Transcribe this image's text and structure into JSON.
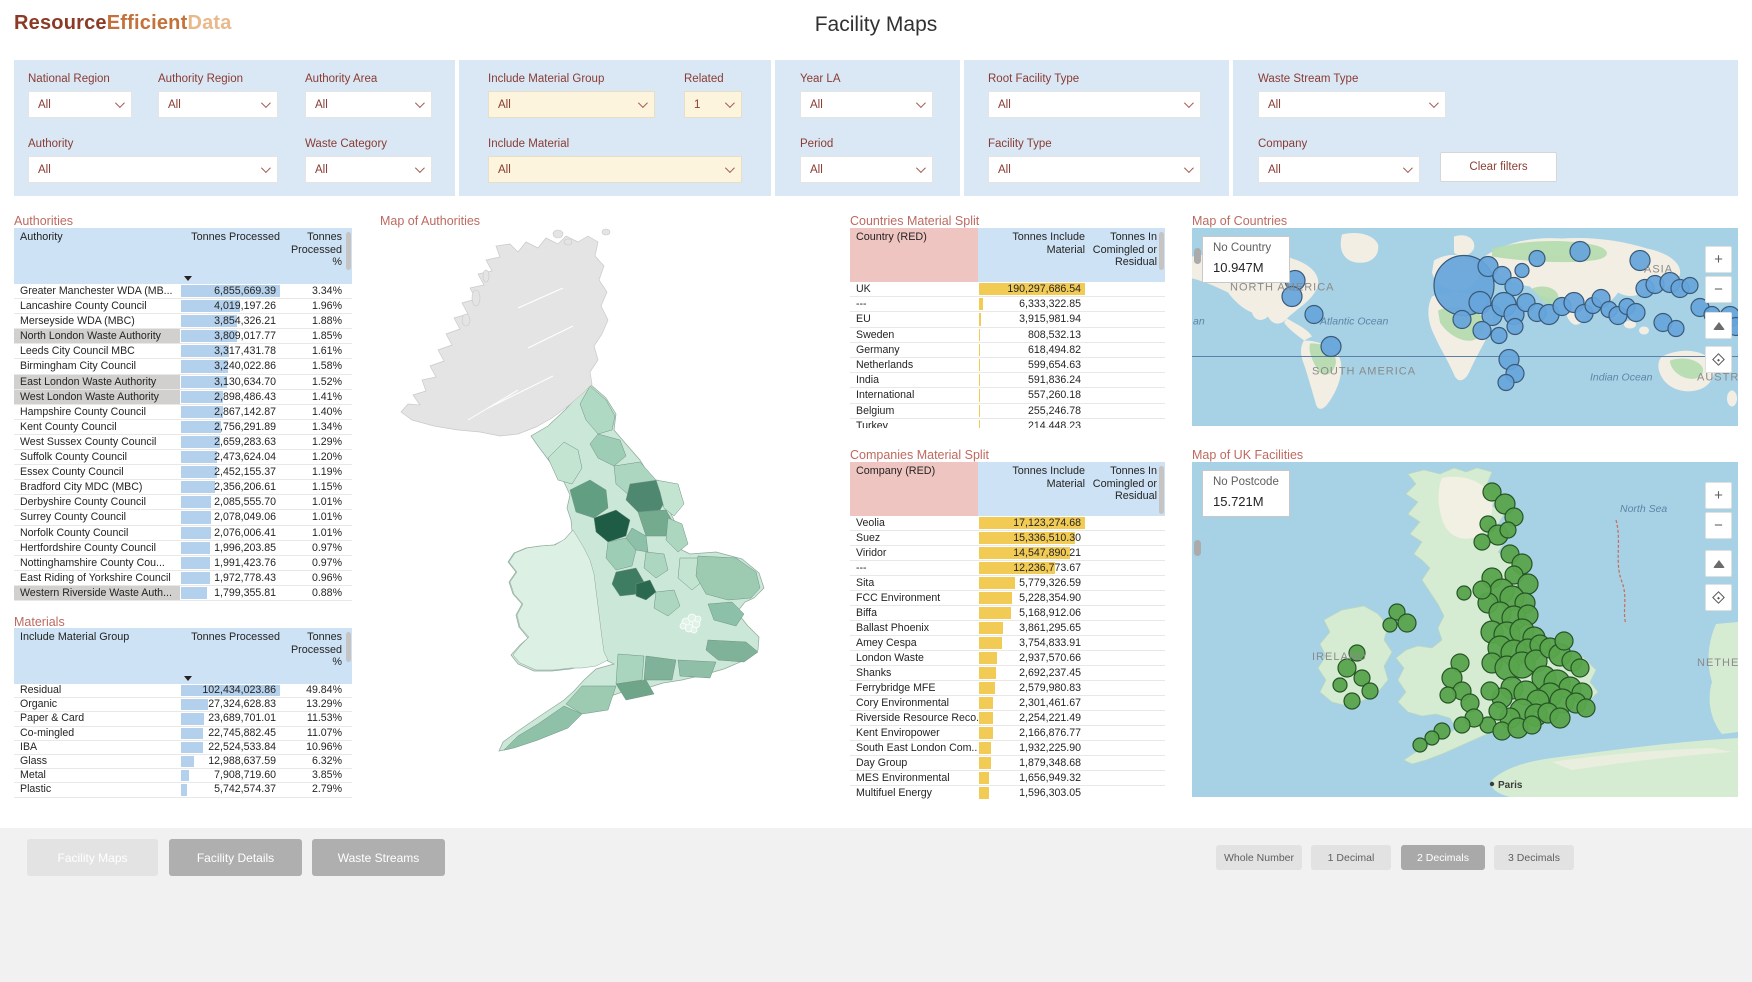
{
  "logo": {
    "part1": "Resource",
    "part2": "Efficient",
    "part3": "Data"
  },
  "page": {
    "title": "Facility Maps"
  },
  "filters": {
    "national_region": {
      "label": "National Region",
      "value": "All"
    },
    "authority_region": {
      "label": "Authority Region",
      "value": "All"
    },
    "authority_area": {
      "label": "Authority Area",
      "value": "All"
    },
    "authority": {
      "label": "Authority",
      "value": "All"
    },
    "waste_category": {
      "label": "Waste Category",
      "value": "All"
    },
    "include_material_group": {
      "label": "Include Material Group",
      "value": "All"
    },
    "related": {
      "label": "Related",
      "value": "1"
    },
    "include_material": {
      "label": "Include Material",
      "value": "All"
    },
    "year_la": {
      "label": "Year LA",
      "value": "All"
    },
    "period": {
      "label": "Period",
      "value": "All"
    },
    "root_facility_type": {
      "label": "Root Facility Type",
      "value": "All"
    },
    "facility_type": {
      "label": "Facility Type",
      "value": "All"
    },
    "waste_stream_type": {
      "label": "Waste Stream Type",
      "value": "All"
    },
    "company": {
      "label": "Company",
      "value": "All"
    },
    "clear_label": "Clear filters"
  },
  "authorities": {
    "title": "Authorities",
    "headers": [
      "Authority",
      "Tonnes Processed",
      "Tonnes Processed %"
    ],
    "rows": [
      {
        "name": "Greater Manchester WDA (MB...",
        "value": "6,855,669.39",
        "pct": "3.34%"
      },
      {
        "name": "Lancashire County Council",
        "value": "4,019,197.26",
        "pct": "1.96%"
      },
      {
        "name": "Merseyside WDA (MBC)",
        "value": "3,854,326.21",
        "pct": "1.88%"
      },
      {
        "name": "North London Waste Authority",
        "value": "3,809,017.77",
        "pct": "1.85%",
        "hl": true
      },
      {
        "name": "Leeds City Council MBC",
        "value": "3,317,431.78",
        "pct": "1.61%"
      },
      {
        "name": "Birmingham City Council",
        "value": "3,240,022.86",
        "pct": "1.58%"
      },
      {
        "name": "East London Waste Authority",
        "value": "3,130,634.70",
        "pct": "1.52%",
        "hl": true
      },
      {
        "name": "West London Waste Authority",
        "value": "2,898,486.43",
        "pct": "1.41%",
        "hl": true
      },
      {
        "name": "Hampshire County Council",
        "value": "2,867,142.87",
        "pct": "1.40%"
      },
      {
        "name": "Kent County Council",
        "value": "2,756,291.89",
        "pct": "1.34%"
      },
      {
        "name": "West Sussex County Council",
        "value": "2,659,283.63",
        "pct": "1.29%"
      },
      {
        "name": "Suffolk County Council",
        "value": "2,473,624.04",
        "pct": "1.20%"
      },
      {
        "name": "Essex County Council",
        "value": "2,452,155.37",
        "pct": "1.19%"
      },
      {
        "name": "Bradford City MDC (MBC)",
        "value": "2,356,206.61",
        "pct": "1.15%"
      },
      {
        "name": "Derbyshire County Council",
        "value": "2,085,555.70",
        "pct": "1.01%"
      },
      {
        "name": "Surrey County Council",
        "value": "2,078,049.06",
        "pct": "1.01%"
      },
      {
        "name": "Norfolk County Council",
        "value": "2,076,006.41",
        "pct": "1.01%"
      },
      {
        "name": "Hertfordshire County Council",
        "value": "1,996,203.85",
        "pct": "0.97%"
      },
      {
        "name": "Nottinghamshire County Cou...",
        "value": "1,991,423.76",
        "pct": "0.97%"
      },
      {
        "name": "East Riding of Yorkshire Council",
        "value": "1,972,778.43",
        "pct": "0.96%"
      },
      {
        "name": "Western Riverside Waste Auth...",
        "value": "1,799,355.81",
        "pct": "0.88%",
        "hl": true
      }
    ]
  },
  "materials": {
    "title": "Materials",
    "headers": [
      "Include Material Group",
      "Tonnes Processed",
      "Tonnes Processed %"
    ],
    "rows": [
      {
        "name": "Residual",
        "value": "102,434,023.86",
        "pct": "49.84%"
      },
      {
        "name": "Organic",
        "value": "27,324,628.83",
        "pct": "13.29%"
      },
      {
        "name": "Paper & Card",
        "value": "23,689,701.01",
        "pct": "11.53%"
      },
      {
        "name": "Co-mingled",
        "value": "22,745,882.45",
        "pct": "11.07%"
      },
      {
        "name": "IBA",
        "value": "22,524,533.84",
        "pct": "10.96%"
      },
      {
        "name": "Glass",
        "value": "12,988,637.59",
        "pct": "6.32%"
      },
      {
        "name": "Metal",
        "value": "7,908,719.60",
        "pct": "3.85%"
      },
      {
        "name": "Plastic",
        "value": "5,742,574.37",
        "pct": "2.79%"
      }
    ]
  },
  "countries": {
    "title": "Countries Material Split",
    "headers": [
      "Country (RED)",
      "Tonnes Include Material",
      "Tonnes In Comingled or Residual"
    ],
    "rows": [
      {
        "name": "UK",
        "value": "190,297,686.54"
      },
      {
        "name": "---",
        "value": "6,333,322.85"
      },
      {
        "name": "EU",
        "value": "3,915,981.94"
      },
      {
        "name": "Sweden",
        "value": "808,532.13"
      },
      {
        "name": "Germany",
        "value": "618,494.82"
      },
      {
        "name": "Netherlands",
        "value": "599,654.63"
      },
      {
        "name": "India",
        "value": "591,836.24"
      },
      {
        "name": "International",
        "value": "557,260.18"
      },
      {
        "name": "Belgium",
        "value": "255,246.78"
      },
      {
        "name": "Turkey",
        "value": "214,448.23"
      }
    ]
  },
  "companies": {
    "title": "Companies Material Split",
    "headers": [
      "Company (RED)",
      "Tonnes Include Material",
      "Tonnes In Comingled or Residual"
    ],
    "rows": [
      {
        "name": "Veolia",
        "value": "17,123,274.68"
      },
      {
        "name": "Suez",
        "value": "15,336,510.30"
      },
      {
        "name": "Viridor",
        "value": "14,547,890.21"
      },
      {
        "name": "---",
        "value": "12,236,773.67"
      },
      {
        "name": "Sita",
        "value": "5,779,326.59"
      },
      {
        "name": "FCC Environment",
        "value": "5,228,354.90"
      },
      {
        "name": "Biffa",
        "value": "5,168,912.06"
      },
      {
        "name": "Ballast Phoenix",
        "value": "3,861,295.65"
      },
      {
        "name": "Amey Cespa",
        "value": "3,754,833.91"
      },
      {
        "name": "London Waste",
        "value": "2,937,570.66"
      },
      {
        "name": "Shanks",
        "value": "2,692,237.45"
      },
      {
        "name": "Ferrybridge MFE",
        "value": "2,579,980.83"
      },
      {
        "name": "Cory Environmental",
        "value": "2,301,461.67"
      },
      {
        "name": "Riverside Resource Reco...",
        "value": "2,254,221.49"
      },
      {
        "name": "Kent Enviropower",
        "value": "2,166,876.77"
      },
      {
        "name": "South East London Com...",
        "value": "1,932,225.90"
      },
      {
        "name": "Day Group",
        "value": "1,879,348.68"
      },
      {
        "name": "MES Environmental",
        "value": "1,656,949.32"
      },
      {
        "name": "Multifuel Energy",
        "value": "1,596,303.05"
      }
    ]
  },
  "map_authorities": {
    "title": "Map of Authorities"
  },
  "map_countries": {
    "title": "Map of Countries",
    "legend_label": "No Country",
    "legend_value": "10.947M",
    "controls": {
      "zoom_in": "+",
      "zoom_out": "−"
    },
    "labels": {
      "north_america": "NORTH AMERICA",
      "south_america": "SOUTH AMERICA",
      "asia": "ASIA",
      "australia": "AUSTRALIA",
      "atlantic": "Atlantic Ocean",
      "indian": "Indian Ocean",
      "left_edge": "an"
    },
    "bubbles": [
      [
        272,
        57,
        30
      ],
      [
        296,
        38,
        10
      ],
      [
        310,
        47,
        9
      ],
      [
        322,
        58,
        9
      ],
      [
        330,
        42,
        7
      ],
      [
        345,
        30,
        8
      ],
      [
        288,
        74,
        11
      ],
      [
        300,
        87,
        10
      ],
      [
        312,
        76,
        12
      ],
      [
        322,
        86,
        10
      ],
      [
        270,
        91,
        9
      ],
      [
        290,
        102,
        9
      ],
      [
        307,
        107,
        8
      ],
      [
        323,
        98,
        8
      ],
      [
        334,
        74,
        9
      ],
      [
        345,
        84,
        9
      ],
      [
        357,
        86,
        10
      ],
      [
        370,
        78,
        9
      ],
      [
        382,
        74,
        10
      ],
      [
        392,
        85,
        9
      ],
      [
        401,
        77,
        8
      ],
      [
        409,
        70,
        9
      ],
      [
        417,
        81,
        8
      ],
      [
        426,
        87,
        9
      ],
      [
        435,
        78,
        8
      ],
      [
        444,
        84,
        9
      ],
      [
        453,
        60,
        9
      ],
      [
        463,
        56,
        9
      ],
      [
        478,
        54,
        10
      ],
      [
        488,
        60,
        9
      ],
      [
        498,
        57,
        8
      ],
      [
        388,
        23,
        10
      ],
      [
        448,
        32,
        10
      ],
      [
        103,
        52,
        10
      ],
      [
        100,
        68,
        10
      ],
      [
        122,
        86,
        9
      ],
      [
        139,
        118,
        10
      ],
      [
        317,
        131,
        10
      ],
      [
        323,
        145,
        9
      ],
      [
        314,
        154,
        8
      ],
      [
        471,
        94,
        9
      ],
      [
        484,
        100,
        8
      ],
      [
        538,
        88,
        10
      ],
      [
        544,
        98,
        9
      ],
      [
        508,
        79,
        9
      ],
      [
        520,
        86,
        8
      ]
    ]
  },
  "map_uk": {
    "title": "Map of UK Facilities",
    "legend_label": "No Postcode",
    "legend_value": "15.721M",
    "controls": {
      "zoom_in": "+",
      "zoom_out": "−"
    },
    "labels": {
      "north_sea": "North Sea",
      "ireland": "IRELAND",
      "netherlands": "NETHERL",
      "paris": "Paris"
    },
    "bubbles": [
      [
        300,
        30,
        9
      ],
      [
        313,
        42,
        10
      ],
      [
        322,
        55,
        9
      ],
      [
        296,
        62,
        8
      ],
      [
        306,
        73,
        10
      ],
      [
        290,
        80,
        8
      ],
      [
        316,
        68,
        8
      ],
      [
        318,
        92,
        9
      ],
      [
        330,
        102,
        10
      ],
      [
        322,
        113,
        9
      ],
      [
        336,
        122,
        10
      ],
      [
        300,
        116,
        10
      ],
      [
        310,
        129,
        12
      ],
      [
        296,
        141,
        10
      ],
      [
        320,
        136,
        12
      ],
      [
        333,
        141,
        10
      ],
      [
        308,
        151,
        11
      ],
      [
        322,
        156,
        12
      ],
      [
        336,
        153,
        10
      ],
      [
        290,
        128,
        9
      ],
      [
        300,
        170,
        11
      ],
      [
        315,
        173,
        13
      ],
      [
        330,
        169,
        12
      ],
      [
        342,
        176,
        11
      ],
      [
        308,
        186,
        12
      ],
      [
        322,
        191,
        13
      ],
      [
        336,
        189,
        12
      ],
      [
        348,
        183,
        10
      ],
      [
        300,
        201,
        10
      ],
      [
        315,
        206,
        12
      ],
      [
        330,
        203,
        13
      ],
      [
        344,
        199,
        11
      ],
      [
        358,
        186,
        10
      ],
      [
        368,
        193,
        11
      ],
      [
        380,
        199,
        10
      ],
      [
        372,
        179,
        9
      ],
      [
        388,
        206,
        9
      ],
      [
        352,
        216,
        12
      ],
      [
        365,
        221,
        13
      ],
      [
        378,
        226,
        11
      ],
      [
        390,
        231,
        10
      ],
      [
        358,
        233,
        12
      ],
      [
        370,
        239,
        12
      ],
      [
        384,
        241,
        10
      ],
      [
        394,
        246,
        9
      ],
      [
        320,
        226,
        11
      ],
      [
        334,
        231,
        12
      ],
      [
        346,
        239,
        11
      ],
      [
        310,
        236,
        10
      ],
      [
        298,
        229,
        9
      ],
      [
        330,
        249,
        12
      ],
      [
        344,
        253,
        11
      ],
      [
        356,
        251,
        10
      ],
      [
        318,
        256,
        10
      ],
      [
        306,
        249,
        9
      ],
      [
        368,
        256,
        10
      ],
      [
        296,
        263,
        8
      ],
      [
        310,
        269,
        9
      ],
      [
        326,
        266,
        10
      ],
      [
        340,
        263,
        9
      ],
      [
        268,
        201,
        9
      ],
      [
        260,
        216,
        10
      ],
      [
        270,
        229,
        9
      ],
      [
        256,
        233,
        8
      ],
      [
        278,
        241,
        9
      ],
      [
        282,
        256,
        9
      ],
      [
        270,
        263,
        8
      ],
      [
        250,
        269,
        8
      ],
      [
        240,
        276,
        7
      ],
      [
        228,
        283,
        7
      ],
      [
        205,
        150,
        8
      ],
      [
        215,
        161,
        9
      ],
      [
        198,
        163,
        7
      ],
      [
        165,
        191,
        8
      ],
      [
        155,
        206,
        9
      ],
      [
        170,
        216,
        8
      ],
      [
        148,
        223,
        7
      ],
      [
        178,
        229,
        8
      ],
      [
        160,
        239,
        8
      ],
      [
        272,
        131,
        7
      ]
    ]
  },
  "footer": {
    "pages": [
      {
        "label": "Facility Maps"
      },
      {
        "label": "Facility Details"
      },
      {
        "label": "Waste Streams"
      }
    ],
    "formats": [
      {
        "label": "Whole Number"
      },
      {
        "label": "1 Decimal"
      },
      {
        "label": "2 Decimals"
      },
      {
        "label": "3 Decimals"
      }
    ]
  }
}
